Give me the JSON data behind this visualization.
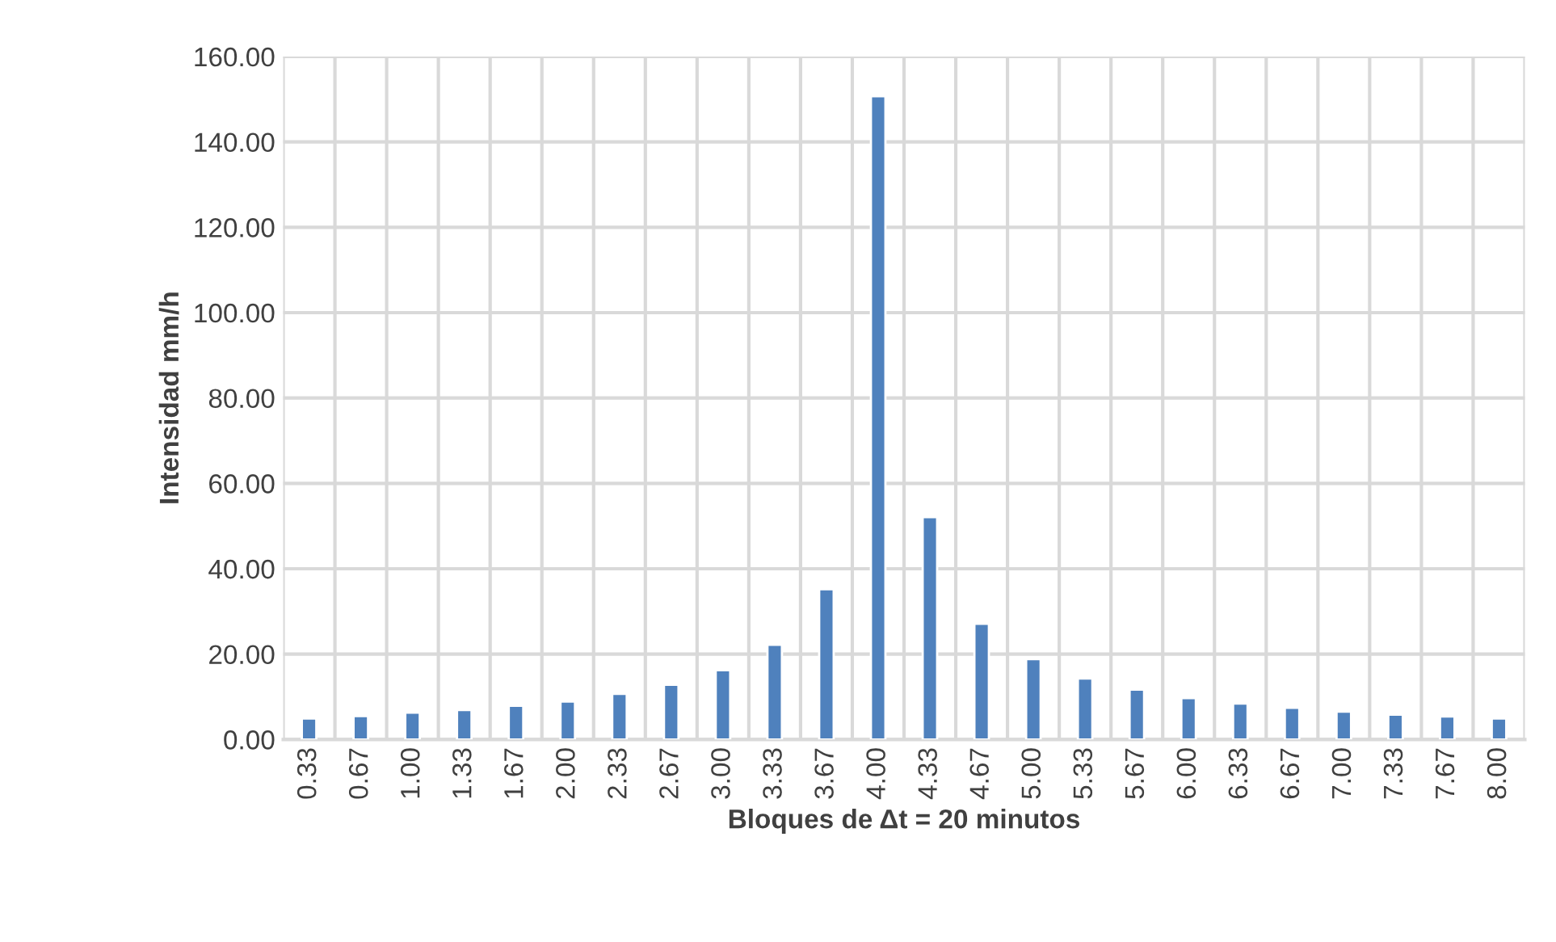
{
  "chart_data": {
    "type": "bar",
    "xlabel": "Bloques de Δt = 20 minutos",
    "ylabel": "Intensidad mm/h",
    "categories": [
      "0.33",
      "0.67",
      "1.00",
      "1.33",
      "1.67",
      "2.00",
      "2.33",
      "2.67",
      "3.00",
      "3.33",
      "3.67",
      "4.00",
      "4.33",
      "4.67",
      "5.00",
      "5.33",
      "5.67",
      "6.00",
      "6.33",
      "6.67",
      "7.00",
      "7.33",
      "7.67",
      "8.00"
    ],
    "values": [
      4.9,
      5.5,
      6.3,
      6.9,
      7.9,
      8.9,
      10.7,
      12.8,
      16.2,
      22.2,
      35.2,
      150.7,
      52.1,
      27.1,
      18.8,
      14.3,
      11.7,
      9.7,
      8.4,
      7.4,
      6.5,
      5.8,
      5.4,
      4.9
    ],
    "color": "#4f81bd",
    "ylim": [
      0,
      160
    ],
    "yticks": [
      {
        "value": 0,
        "label": "0.00"
      },
      {
        "value": 20,
        "label": "20.00"
      },
      {
        "value": 40,
        "label": "40.00"
      },
      {
        "value": 60,
        "label": "60.00"
      },
      {
        "value": 80,
        "label": "80.00"
      },
      {
        "value": 100,
        "label": "100.00"
      },
      {
        "value": 120,
        "label": "120.00"
      },
      {
        "value": 140,
        "label": "140.00"
      },
      {
        "value": 160,
        "label": "160.00"
      }
    ],
    "grid": true,
    "legend": false
  }
}
